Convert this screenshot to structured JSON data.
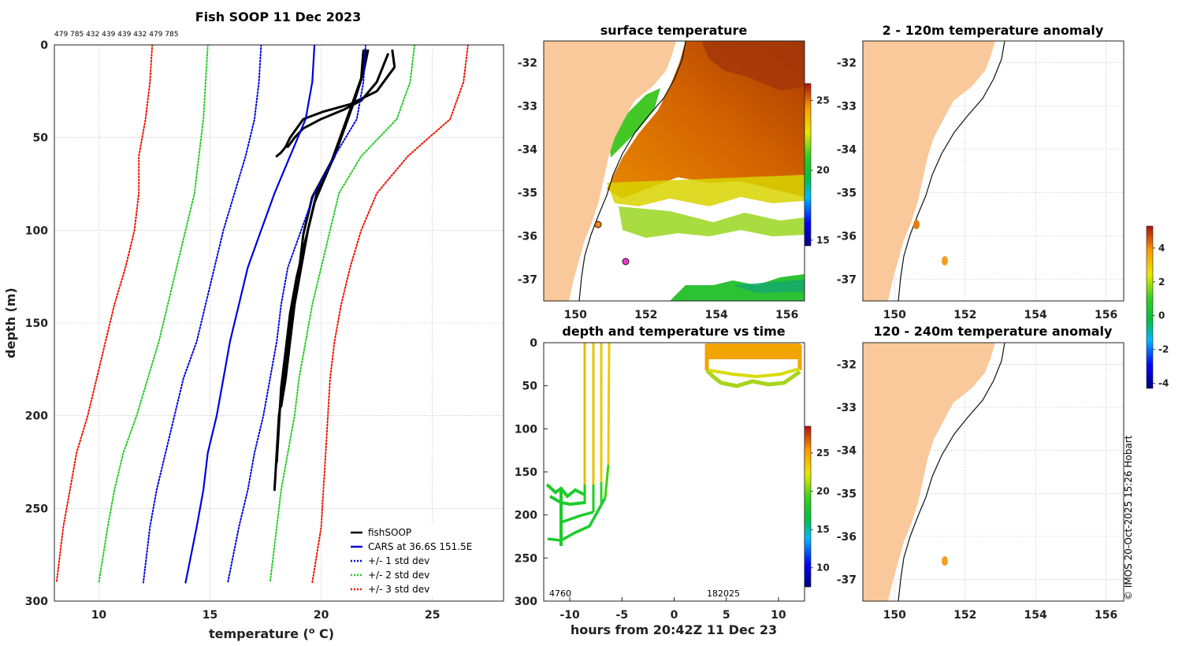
{
  "chart_data": [
    {
      "type": "line",
      "title": "Fish SOOP 11 Dec 2023",
      "top_annotation": "479 785 432 439 439 432 479 785",
      "xlabel": "temperature (",
      "xlabel_sup": "o",
      "xlabel_unit": " C)",
      "ylabel": "depth (m)",
      "xlim": [
        8,
        28.2
      ],
      "ylim": [
        300,
        0
      ],
      "xticks": [
        "10",
        "15",
        "20",
        "25"
      ],
      "yticks": [
        "0",
        "50",
        "100",
        "150",
        "200",
        "250",
        "300"
      ],
      "depth": [
        0,
        20,
        40,
        60,
        80,
        100,
        120,
        140,
        160,
        180,
        200,
        220,
        240,
        260,
        290
      ],
      "series": [
        {
          "name": "fishSOOP",
          "color": "#000000",
          "style": "solid",
          "width": 3,
          "profiles": [
            {
              "temp": [
                22.0,
                21.9,
                21.5,
                20.6,
                19.8,
                19.4,
                19.1,
                18.8,
                18.6,
                18.4,
                18.2
              ],
              "depth": [
                3,
                15,
                30,
                60,
                80,
                100,
                120,
                140,
                160,
                180,
                195
              ]
            },
            {
              "temp": [
                22.1,
                21.9,
                21.4,
                20.5,
                19.6,
                19.2,
                19.0,
                18.7,
                18.5,
                18.3,
                18.1,
                17.9
              ],
              "depth": [
                3,
                15,
                32,
                62,
                82,
                102,
                122,
                142,
                162,
                182,
                200,
                240
              ]
            },
            {
              "temp": [
                21.9,
                21.8,
                21.3,
                20.4,
                19.7,
                19.3,
                18.9,
                18.6,
                18.4,
                18.2,
                18.0
              ],
              "depth": [
                3,
                18,
                35,
                65,
                85,
                105,
                125,
                145,
                165,
                185,
                225
              ]
            },
            {
              "temp": [
                23.2,
                23.3,
                22.5,
                21.3,
                20.1,
                19.2,
                18.9,
                18.6,
                18.4,
                18.2,
                18.0
              ],
              "depth": [
                3,
                12,
                25,
                32,
                36,
                40,
                45,
                50,
                55,
                58,
                60
              ]
            },
            {
              "temp": [
                23.0,
                22.5,
                21.8,
                21.0,
                20.0,
                19.2,
                18.8,
                18.5
              ],
              "depth": [
                5,
                20,
                30,
                35,
                40,
                45,
                50,
                55
              ]
            }
          ]
        },
        {
          "name": "CARS at 36.6S 151.5E",
          "color": "#0000dd",
          "style": "solid",
          "width": 2.2,
          "temp": [
            19.7,
            19.6,
            19.3,
            18.6,
            17.9,
            17.3,
            16.7,
            16.3,
            15.9,
            15.6,
            15.3,
            14.9,
            14.7,
            14.4,
            13.9
          ]
        },
        {
          "name": "+/- 1 std dev",
          "color": "#0000dd",
          "style": "dotted",
          "width": 2,
          "temp_hi": [
            22.0,
            21.9,
            21.6,
            20.6,
            19.7,
            19.1,
            18.5,
            18.2,
            18.0,
            17.7,
            17.4,
            17.0,
            16.7,
            16.3,
            15.8
          ],
          "temp_lo": [
            17.3,
            17.2,
            17.0,
            16.6,
            16.1,
            15.6,
            15.2,
            14.8,
            14.4,
            13.8,
            13.4,
            13.0,
            12.6,
            12.3,
            12.0
          ]
        },
        {
          "name": "+/- 2 std dev",
          "color": "#22cc22",
          "style": "dotted",
          "width": 2,
          "temp_hi": [
            24.2,
            24.0,
            23.4,
            21.8,
            20.8,
            20.4,
            20.0,
            19.6,
            19.3,
            19.0,
            18.8,
            18.5,
            18.2,
            18.0,
            17.7
          ],
          "temp_lo": [
            14.9,
            14.8,
            14.7,
            14.5,
            14.3,
            13.9,
            13.5,
            13.1,
            12.7,
            12.2,
            11.7,
            11.1,
            10.7,
            10.4,
            10.0
          ]
        },
        {
          "name": "+/- 3 std dev",
          "color": "#ee1100",
          "style": "dotted",
          "width": 2,
          "temp_hi": [
            26.6,
            26.4,
            25.8,
            23.9,
            22.5,
            21.8,
            21.3,
            20.9,
            20.6,
            20.4,
            20.3,
            20.2,
            20.1,
            20.0,
            19.6
          ],
          "temp_lo": [
            12.4,
            12.3,
            12.1,
            11.8,
            11.8,
            11.6,
            11.2,
            10.7,
            10.3,
            9.9,
            9.5,
            9.0,
            8.7,
            8.4,
            8.1
          ]
        }
      ],
      "legend": "bottom-right"
    },
    {
      "type": "heatmap",
      "title": "surface temperature",
      "xlim": [
        149.1,
        156.5
      ],
      "ylim": [
        -37.5,
        -31.5
      ],
      "xticks": [
        "150",
        "152",
        "154",
        "156"
      ],
      "yticks": [
        "-32",
        "-33",
        "-34",
        "-35",
        "-36",
        "-37"
      ],
      "colorbar": {
        "range": [
          14.6,
          26.2
        ],
        "ticks": [
          "15",
          "20",
          "25"
        ]
      },
      "markers": [
        {
          "lon": 150.7,
          "lat": -35.7,
          "color": "#f08a00"
        },
        {
          "lon": 151.5,
          "lat": -36.55,
          "color": "#ff33cc"
        }
      ]
    },
    {
      "type": "scatter",
      "title": "depth and temperature vs time",
      "xlabel": "hours from 20:42Z 11 Dec 23",
      "xlim": [
        -12.5,
        12.5
      ],
      "ylim": [
        300,
        0
      ],
      "xticks": [
        "-10",
        "-5",
        "0",
        "5",
        "10"
      ],
      "yticks": [
        "0",
        "50",
        "100",
        "150",
        "200",
        "250",
        "300"
      ],
      "bottom_labels": [
        "4760",
        "182025"
      ],
      "colorbar": {
        "range": [
          7.5,
          28.5
        ],
        "ticks": [
          "10",
          "15",
          "20",
          "25"
        ]
      }
    },
    {
      "type": "heatmap",
      "title": "2 - 120m temperature anomaly",
      "xlim": [
        149.1,
        156.5
      ],
      "ylim": [
        -37.5,
        -31.5
      ],
      "xticks": [
        "150",
        "152",
        "154",
        "156"
      ],
      "yticks": [
        "-32",
        "-33",
        "-34",
        "-35",
        "-36",
        "-37"
      ],
      "colorbar": {
        "range": [
          -4.3,
          5.3
        ],
        "ticks": [
          "4",
          "2",
          "0",
          "-2",
          "-4"
        ]
      }
    },
    {
      "type": "heatmap",
      "title": "120 - 240m temperature anomaly",
      "xlim": [
        149.1,
        156.5
      ],
      "ylim": [
        -37.5,
        -31.5
      ],
      "xticks": [
        "150",
        "152",
        "154",
        "156"
      ],
      "yticks": [
        "-32",
        "-33",
        "-34",
        "-35",
        "-36",
        "-37"
      ]
    }
  ],
  "credit": "© IMOS 20-Oct-2025 15:26 Hobart"
}
